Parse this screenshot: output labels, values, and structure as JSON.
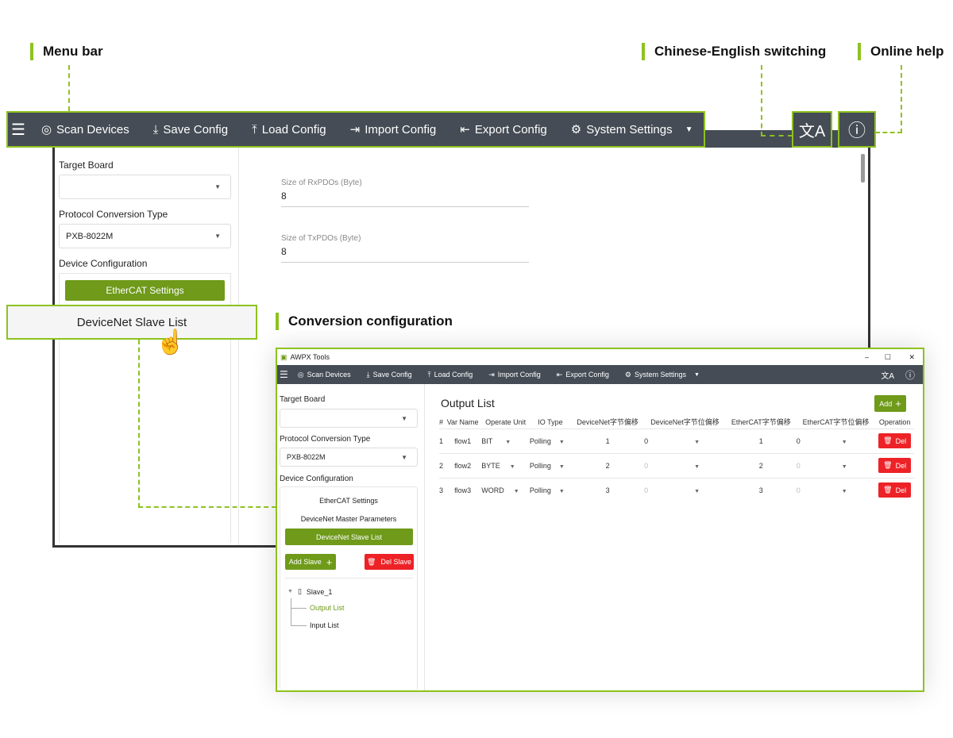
{
  "annotations": {
    "menu_bar": "Menu bar",
    "lang_switch": "Chinese-English switching",
    "online_help": "Online help",
    "conversion": "Conversion configuration"
  },
  "menu": {
    "items": [
      {
        "label": "Scan Devices",
        "icon": "scan-icon"
      },
      {
        "label": "Save Config",
        "icon": "save-icon"
      },
      {
        "label": "Load Config",
        "icon": "load-icon"
      },
      {
        "label": "Import Config",
        "icon": "import-icon"
      },
      {
        "label": "Export Config",
        "icon": "export-icon"
      },
      {
        "label": "System Settings",
        "icon": "settings-icon"
      }
    ]
  },
  "left": {
    "target_board": "Target Board",
    "target_board_value": "",
    "protocol_type": "Protocol Conversion Type",
    "protocol_value": "PXB-8022M",
    "device_config": "Device Configuration",
    "ethercat_settings": "EtherCAT Settings",
    "master_params": "DeviceNet Master Parameters",
    "slave_list": "DeviceNet Slave List",
    "add_slave": "Add Slave",
    "del_slave": "Del Slave",
    "tree": {
      "slave": "Slave_1",
      "output": "Output List",
      "input": "Input List"
    }
  },
  "bg_content": {
    "rx_label": "Size of RxPDOs (Byte)",
    "rx_value": "8",
    "tx_label": "Size of TxPDOs (Byte)",
    "tx_value": "8"
  },
  "window": {
    "title": "AWPX Tools",
    "minimize": "–",
    "maximize": "☐",
    "close": "✕"
  },
  "output": {
    "title": "Output List",
    "add": "Add",
    "columns": [
      "#",
      "Var Name",
      "Operate Unit",
      "IO Type",
      "DeviceNet字节偏移",
      "DeviceNet字节位偏移",
      "EtherCAT字节偏移",
      "EtherCAT字节位偏移",
      "Operation"
    ],
    "rows": [
      {
        "n": "1",
        "var": "flow1",
        "unit": "BIT",
        "io": "Polling",
        "dn_byte": "1",
        "dn_bit": "0",
        "ec_byte": "1",
        "ec_bit": "0",
        "op": "Del"
      },
      {
        "n": "2",
        "var": "flow2",
        "unit": "BYTE",
        "io": "Polling",
        "dn_byte": "2",
        "dn_bit": "0",
        "ec_byte": "2",
        "ec_bit": "0",
        "op": "Del"
      },
      {
        "n": "3",
        "var": "flow3",
        "unit": "WORD",
        "io": "Polling",
        "dn_byte": "3",
        "dn_bit": "0",
        "ec_byte": "3",
        "ec_bit": "0",
        "op": "Del"
      }
    ]
  },
  "colors": {
    "accent": "#8dc21f",
    "menubar": "#454c55",
    "button_green": "#6f9a1a",
    "danger": "#ed2227"
  }
}
